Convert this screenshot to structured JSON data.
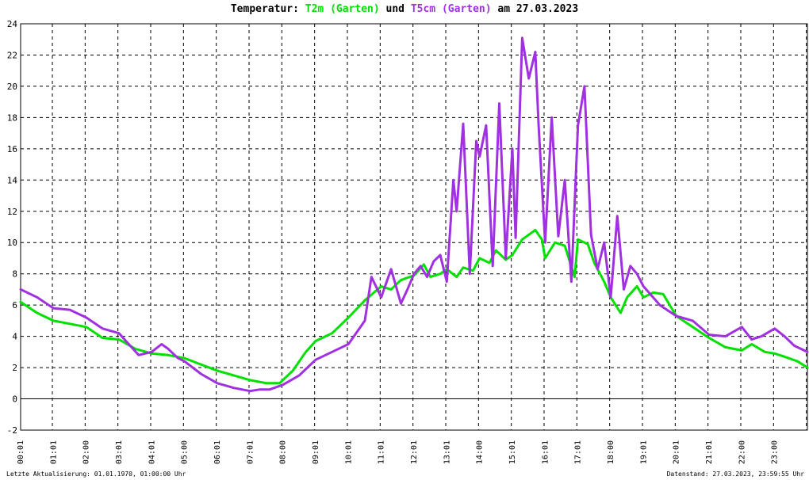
{
  "title": {
    "prefix": "Temperatur:",
    "series1_label": "T2m (Garten)",
    "connector": "und",
    "series2_label": "T5cm (Garten)",
    "date_text": "am 27.03.2023"
  },
  "footer": {
    "left": "Letzte Aktualisierung: 01.01.1970, 01:00:00 Uhr",
    "right": "Datenstand: 27.03.2023, 23:59:55 Uhr"
  },
  "chart_data": {
    "type": "line",
    "title": "Temperatur: T2m (Garten) und T5cm (Garten) am 27.03.2023",
    "xlabel": "",
    "ylabel": "",
    "xlim": [
      0,
      24
    ],
    "ylim": [
      -2,
      24
    ],
    "x_ticks": [
      "00:01",
      "01:01",
      "02:00",
      "03:01",
      "04:01",
      "05:00",
      "06:01",
      "07:01",
      "08:00",
      "09:01",
      "10:01",
      "11:01",
      "12:01",
      "13:01",
      "14:00",
      "15:01",
      "16:01",
      "17:01",
      "18:00",
      "19:01",
      "20:01",
      "21:01",
      "22:00",
      "23:00"
    ],
    "y_ticks": [
      -2,
      0,
      2,
      4,
      6,
      8,
      10,
      12,
      14,
      16,
      18,
      20,
      22,
      24
    ],
    "grid": true,
    "colors": {
      "T2m": "#00e000",
      "T5cm": "#a030e0",
      "grid": "#000000",
      "zero_line": "#000000"
    },
    "series": [
      {
        "name": "T2m (Garten)",
        "color": "#00e000",
        "x": [
          0,
          0.5,
          1.0,
          1.5,
          2.0,
          2.5,
          3.0,
          3.5,
          4.0,
          4.5,
          5.0,
          5.5,
          6.0,
          6.5,
          7.0,
          7.5,
          7.9,
          8.3,
          8.7,
          9.0,
          9.5,
          10.0,
          10.5,
          11.0,
          11.3,
          11.6,
          12.0,
          12.3,
          12.5,
          12.8,
          13.0,
          13.3,
          13.5,
          13.8,
          14.0,
          14.3,
          14.5,
          14.8,
          15.0,
          15.3,
          15.5,
          15.7,
          15.9,
          16.0,
          16.3,
          16.6,
          16.9,
          17.0,
          17.3,
          17.5,
          17.8,
          18.0,
          18.3,
          18.5,
          18.8,
          19.0,
          19.3,
          19.6,
          20.0,
          20.5,
          21.0,
          21.5,
          22.0,
          22.3,
          22.7,
          23.0,
          23.3,
          23.7,
          24.0
        ],
        "values": [
          6.2,
          5.5,
          5.0,
          4.8,
          4.6,
          3.9,
          3.8,
          3.2,
          2.9,
          2.8,
          2.6,
          2.2,
          1.8,
          1.5,
          1.2,
          1.0,
          1.0,
          1.8,
          3.0,
          3.7,
          4.2,
          5.2,
          6.3,
          7.2,
          7.0,
          7.6,
          7.9,
          8.6,
          7.8,
          8.0,
          8.3,
          7.8,
          8.4,
          8.2,
          9.0,
          8.7,
          9.5,
          8.9,
          9.2,
          10.2,
          10.5,
          10.8,
          10.2,
          9.0,
          10.0,
          9.8,
          7.8,
          10.2,
          9.9,
          8.7,
          7.5,
          6.5,
          5.5,
          6.5,
          7.2,
          6.5,
          6.8,
          6.7,
          5.3,
          4.6,
          3.9,
          3.3,
          3.1,
          3.5,
          3.0,
          2.9,
          2.7,
          2.4,
          2.0
        ]
      },
      {
        "name": "T5cm (Garten)",
        "color": "#a030e0",
        "x": [
          0,
          0.5,
          1.0,
          1.5,
          2.0,
          2.5,
          3.0,
          3.3,
          3.6,
          4.0,
          4.3,
          4.5,
          4.8,
          5.0,
          5.5,
          6.0,
          6.5,
          7.0,
          7.3,
          7.6,
          8.0,
          8.5,
          9.0,
          9.5,
          10.0,
          10.5,
          10.7,
          11.0,
          11.3,
          11.6,
          11.8,
          12.0,
          12.2,
          12.4,
          12.6,
          12.8,
          13.0,
          13.2,
          13.3,
          13.5,
          13.7,
          13.9,
          14.0,
          14.2,
          14.4,
          14.6,
          14.8,
          15.0,
          15.1,
          15.3,
          15.5,
          15.7,
          15.8,
          16.0,
          16.2,
          16.4,
          16.6,
          16.8,
          17.0,
          17.2,
          17.4,
          17.6,
          17.8,
          18.0,
          18.2,
          18.4,
          18.6,
          18.8,
          19.0,
          19.5,
          20.0,
          20.5,
          21.0,
          21.5,
          22.0,
          22.3,
          22.6,
          23.0,
          23.3,
          23.6,
          24.0
        ],
        "values": [
          7.0,
          6.5,
          5.8,
          5.7,
          5.2,
          4.5,
          4.2,
          3.5,
          2.8,
          3.0,
          3.5,
          3.2,
          2.6,
          2.4,
          1.6,
          1.0,
          0.7,
          0.5,
          0.6,
          0.6,
          0.9,
          1.5,
          2.5,
          3.0,
          3.5,
          5.0,
          7.8,
          6.5,
          8.3,
          6.1,
          7.0,
          8.0,
          8.5,
          7.8,
          8.8,
          9.2,
          7.5,
          14.0,
          12.0,
          17.6,
          8.0,
          16.5,
          15.5,
          17.5,
          8.5,
          18.9,
          9.0,
          16.0,
          10.3,
          23.1,
          20.5,
          22.2,
          17.5,
          10.0,
          18.0,
          10.4,
          14.0,
          7.5,
          17.5,
          20.0,
          10.5,
          8.3,
          10.0,
          6.5,
          11.7,
          7.0,
          8.5,
          8.0,
          7.2,
          6.0,
          5.3,
          5.0,
          4.1,
          4.0,
          4.6,
          3.8,
          4.0,
          4.5,
          4.0,
          3.4,
          3.0
        ]
      }
    ]
  }
}
